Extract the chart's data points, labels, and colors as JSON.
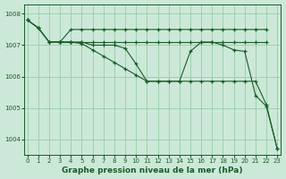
{
  "background_color": "#cce8d8",
  "grid_color": "#99ccaa",
  "line_color": "#1a5c2a",
  "xlabel": "Graphe pression niveau de la mer (hPa)",
  "ylim": [
    1003.5,
    1008.3
  ],
  "xlim": [
    -0.3,
    23.3
  ],
  "yticks": [
    1004,
    1005,
    1006,
    1007,
    1008
  ],
  "xticks": [
    0,
    1,
    2,
    3,
    4,
    5,
    6,
    7,
    8,
    9,
    10,
    11,
    12,
    13,
    14,
    15,
    16,
    17,
    18,
    19,
    20,
    21,
    22,
    23
  ],
  "series": {
    "flat_top": {
      "x": [
        0,
        1,
        2,
        3,
        4,
        5,
        6,
        7,
        8,
        9,
        10,
        11,
        12,
        13,
        14,
        15,
        16,
        17,
        18,
        19,
        20,
        21,
        22
      ],
      "y": [
        1007.8,
        1007.55,
        1007.1,
        1007.1,
        1007.5,
        1007.5,
        1007.5,
        1007.5,
        1007.5,
        1007.5,
        1007.5,
        1007.5,
        1007.5,
        1007.5,
        1007.5,
        1007.5,
        1007.5,
        1007.5,
        1007.5,
        1007.5,
        1007.5,
        1007.5,
        1007.5
      ]
    },
    "flat_mid": {
      "x": [
        3,
        4,
        5,
        6,
        7,
        8,
        9,
        10,
        11,
        12,
        13,
        14,
        15,
        16,
        17,
        18,
        19,
        20,
        21,
        22
      ],
      "y": [
        1007.1,
        1007.1,
        1007.1,
        1007.1,
        1007.1,
        1007.1,
        1007.1,
        1007.1,
        1007.1,
        1007.1,
        1007.1,
        1007.1,
        1007.1,
        1007.1,
        1007.1,
        1007.1,
        1007.1,
        1007.1,
        1007.1,
        1007.1
      ]
    },
    "dip_recover": {
      "x": [
        0,
        1,
        2,
        3,
        4,
        5,
        6,
        7,
        8,
        9,
        10,
        11,
        12,
        13,
        14,
        15,
        16,
        17,
        18,
        19,
        20,
        21,
        22,
        23
      ],
      "y": [
        1007.8,
        1007.55,
        1007.1,
        1007.1,
        1007.1,
        1007.1,
        1007.0,
        1007.0,
        1007.0,
        1006.9,
        1006.4,
        1005.85,
        1005.85,
        1005.85,
        1005.85,
        1006.8,
        1007.1,
        1007.1,
        1007.0,
        1006.85,
        1006.8,
        1005.4,
        1005.05,
        1003.7
      ]
    },
    "diagonal": {
      "x": [
        0,
        1,
        2,
        3,
        4,
        5,
        6,
        7,
        8,
        9,
        10,
        11,
        12,
        13,
        14,
        15,
        16,
        17,
        18,
        19,
        20,
        21,
        22,
        23
      ],
      "y": [
        1007.8,
        1007.55,
        1007.1,
        1007.1,
        1007.1,
        1007.05,
        1006.85,
        1006.65,
        1006.45,
        1006.25,
        1006.05,
        1005.85,
        1005.85,
        1005.85,
        1005.85,
        1005.85,
        1005.85,
        1005.85,
        1005.85,
        1005.85,
        1005.85,
        1005.85,
        1005.1,
        1003.7
      ]
    }
  }
}
